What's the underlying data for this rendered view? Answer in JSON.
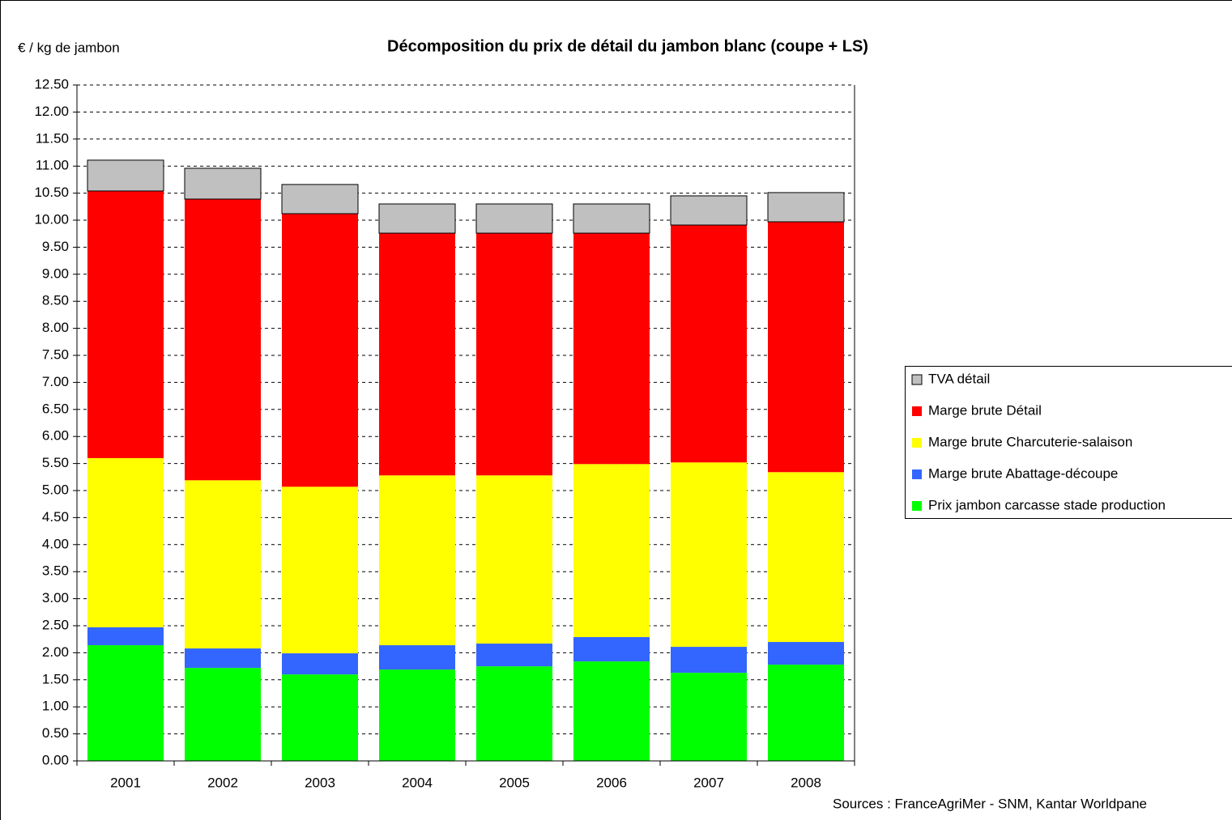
{
  "chart_data": {
    "type": "stacked-bar",
    "title": "Décomposition du prix de détail du jambon blanc  (coupe + LS)",
    "y_label": "€ / kg de jambon",
    "source": "Sources : FranceAgriMer - SNM, Kantar Worldpane",
    "categories": [
      "2001",
      "2002",
      "2003",
      "2004",
      "2005",
      "2006",
      "2007",
      "2008"
    ],
    "series": [
      {
        "name": "Prix jambon carcasse stade production",
        "color": "#00ff00",
        "values": [
          2.14,
          1.72,
          1.6,
          1.69,
          1.75,
          1.84,
          1.63,
          1.78
        ]
      },
      {
        "name": "Marge brute Abattage-découpe",
        "color": "#3366ff",
        "values": [
          0.33,
          0.36,
          0.39,
          0.45,
          0.42,
          0.45,
          0.48,
          0.42
        ]
      },
      {
        "name": "Marge brute Charcuterie-salaison",
        "color": "#ffff00",
        "values": [
          3.13,
          3.11,
          3.08,
          3.14,
          3.11,
          3.2,
          3.41,
          3.14
        ]
      },
      {
        "name": "Marge brute Détail",
        "color": "#ff0000",
        "values": [
          4.94,
          5.2,
          5.05,
          4.48,
          4.48,
          4.27,
          4.39,
          4.63
        ]
      },
      {
        "name": "TVA détail",
        "color": "#c0c0c0",
        "values": [
          0.57,
          0.57,
          0.54,
          0.54,
          0.54,
          0.54,
          0.54,
          0.54
        ]
      }
    ],
    "ylim": [
      0,
      12.5
    ],
    "yticks": [
      {
        "value": 0,
        "label": "0.00"
      },
      {
        "value": 0.5,
        "label": "0.50"
      },
      {
        "value": 1,
        "label": "1.00"
      },
      {
        "value": 1.5,
        "label": "1.50"
      },
      {
        "value": 2,
        "label": "2.00"
      },
      {
        "value": 2.5,
        "label": "2.50"
      },
      {
        "value": 3,
        "label": "3.00"
      },
      {
        "value": 3.5,
        "label": "3.50"
      },
      {
        "value": 4,
        "label": "4.00"
      },
      {
        "value": 4.5,
        "label": "4.50"
      },
      {
        "value": 5,
        "label": "5.00"
      },
      {
        "value": 5.5,
        "label": "5.50"
      },
      {
        "value": 6,
        "label": "6.00"
      },
      {
        "value": 6.5,
        "label": "6.50"
      },
      {
        "value": 7,
        "label": "7.00"
      },
      {
        "value": 7.5,
        "label": "7.50"
      },
      {
        "value": 8,
        "label": "8.00"
      },
      {
        "value": 8.5,
        "label": "8.50"
      },
      {
        "value": 9,
        "label": "9.00"
      },
      {
        "value": 9.5,
        "label": "9.50"
      },
      {
        "value": 10,
        "label": "10.00"
      },
      {
        "value": 10.5,
        "label": "10.50"
      },
      {
        "value": 11,
        "label": "11.00"
      },
      {
        "value": 11.5,
        "label": "11.50"
      },
      {
        "value": 12,
        "label": "12.00"
      },
      {
        "value": 12.5,
        "label": "12.50"
      }
    ],
    "grid": true
  }
}
